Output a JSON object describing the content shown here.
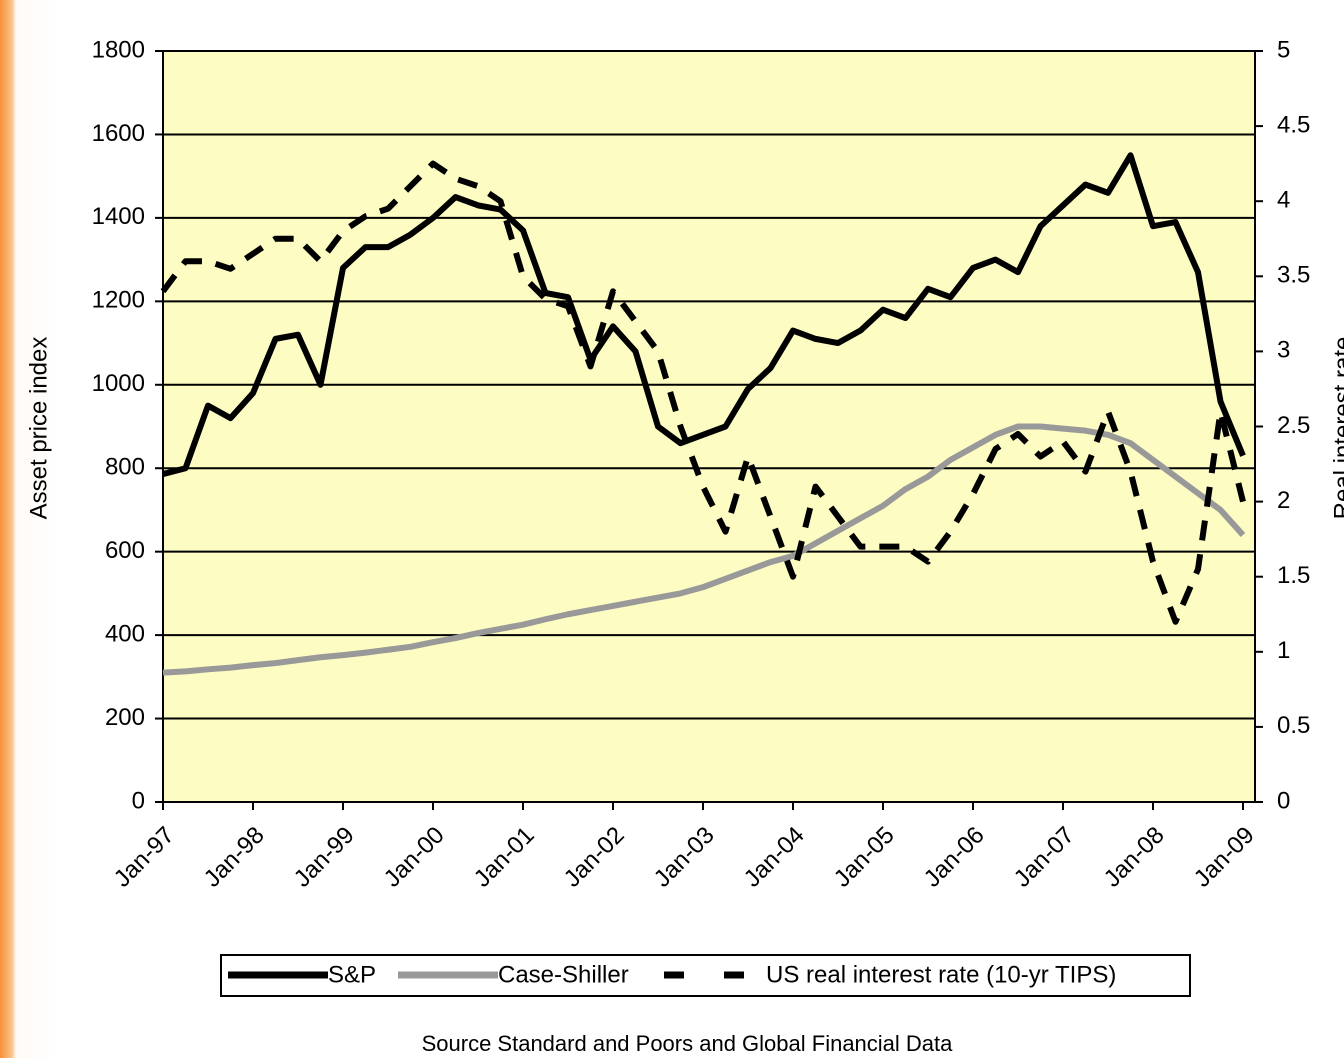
{
  "chart_data": {
    "type": "line",
    "categories": [
      "Jan-97",
      null,
      null,
      null,
      "Jan-98",
      null,
      null,
      null,
      "Jan-99",
      null,
      null,
      null,
      "Jan-00",
      null,
      null,
      null,
      "Jan-01",
      null,
      null,
      null,
      "Jan-02",
      null,
      null,
      null,
      "Jan-03",
      null,
      null,
      null,
      "Jan-04",
      null,
      null,
      null,
      "Jan-05",
      null,
      null,
      null,
      "Jan-06",
      null,
      null,
      null,
      "Jan-07",
      null,
      null,
      null,
      "Jan-08",
      null,
      null,
      null,
      "Jan-09"
    ],
    "series": [
      {
        "name": "S&P",
        "color": "#000000",
        "style": "solid",
        "values": [
          786,
          800,
          950,
          920,
          980,
          1110,
          1120,
          1000,
          1280,
          1330,
          1330,
          1360,
          1400,
          1450,
          1430,
          1420,
          1370,
          1220,
          1210,
          1060,
          1140,
          1080,
          900,
          860,
          880,
          900,
          990,
          1040,
          1130,
          1110,
          1100,
          1130,
          1180,
          1160,
          1230,
          1210,
          1280,
          1300,
          1270,
          1380,
          1430,
          1480,
          1460,
          1550,
          1380,
          1390,
          1270,
          960,
          830
        ]
      },
      {
        "name": "Case-Shiller",
        "color": "#999999",
        "style": "solid",
        "values": [
          310,
          313,
          318,
          322,
          328,
          333,
          340,
          347,
          352,
          358,
          365,
          372,
          383,
          393,
          405,
          415,
          425,
          438,
          450,
          460,
          470,
          480,
          490,
          500,
          515,
          535,
          555,
          575,
          590,
          620,
          650,
          680,
          710,
          750,
          780,
          820,
          850,
          880,
          900,
          900,
          895,
          890,
          880,
          860,
          820,
          780,
          740,
          700,
          640
        ]
      },
      {
        "name": "US real interest rate (10-yr TIPS)",
        "color": "#000000",
        "style": "dashed",
        "axis": "y2",
        "values": [
          3.4,
          3.6,
          3.6,
          3.55,
          3.65,
          3.75,
          3.75,
          3.6,
          3.8,
          3.9,
          3.95,
          4.1,
          4.25,
          4.15,
          4.1,
          4.0,
          3.5,
          3.35,
          3.3,
          2.9,
          3.4,
          3.2,
          3.0,
          2.5,
          2.1,
          1.8,
          2.3,
          1.9,
          1.5,
          2.1,
          1.9,
          1.7,
          1.7,
          1.7,
          1.6,
          1.8,
          2.05,
          2.35,
          2.45,
          2.3,
          2.4,
          2.2,
          2.6,
          2.2,
          1.6,
          1.2,
          1.55,
          2.6,
          2.0
        ]
      }
    ],
    "ylabel": "Asset price index",
    "y2label": "Real interest rate",
    "ylim": [
      0,
      1800
    ],
    "yticks": [
      0,
      200,
      400,
      600,
      800,
      1000,
      1200,
      1400,
      1600,
      1800
    ],
    "y2lim": [
      0,
      5
    ],
    "y2ticks": [
      0,
      0.5,
      1,
      1.5,
      2,
      2.5,
      3,
      3.5,
      4,
      4.5,
      5
    ],
    "grid": true,
    "legend": "bottom",
    "source": "Source Standard and Poors and Global Financial Data"
  }
}
